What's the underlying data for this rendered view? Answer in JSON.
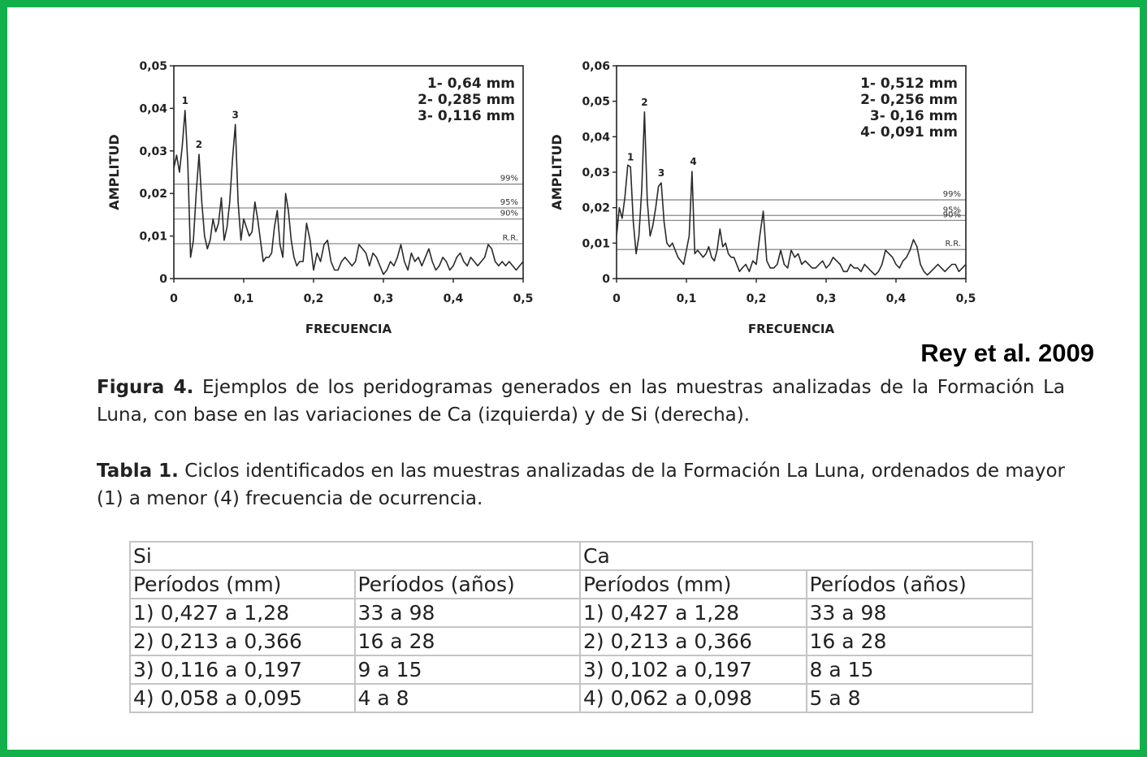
{
  "charts": [
    {
      "type": "line",
      "ylabel": "AMPLITUD",
      "xlabel": "FRECUENCIA",
      "x_ticks": [
        "0",
        "0,1",
        "0,2",
        "0,3",
        "0,4",
        "0,5"
      ],
      "y_ticks": [
        "0",
        "0,01",
        "0,02",
        "0,03",
        "0,04",
        "0,05"
      ],
      "xlim": [
        0,
        0.5
      ],
      "ylim": [
        0,
        0.05
      ],
      "legend": [
        "1- 0,64 mm",
        "2- 0,285 mm",
        "3- 0,116 mm"
      ],
      "thresholds": [
        {
          "label": "99%",
          "value": 0.0222
        },
        {
          "label": "95%",
          "value": 0.0166
        },
        {
          "label": "90%",
          "value": 0.014
        },
        {
          "label": "R.R.",
          "value": 0.0082
        }
      ],
      "peaks": [
        {
          "label": "1",
          "x": 0.016,
          "y": 0.0395
        },
        {
          "label": "2",
          "x": 0.036,
          "y": 0.0292
        },
        {
          "label": "3",
          "x": 0.088,
          "y": 0.0362
        }
      ],
      "x": [
        0,
        0.004,
        0.008,
        0.012,
        0.016,
        0.02,
        0.024,
        0.028,
        0.032,
        0.036,
        0.04,
        0.044,
        0.048,
        0.052,
        0.056,
        0.06,
        0.064,
        0.068,
        0.072,
        0.076,
        0.08,
        0.084,
        0.088,
        0.092,
        0.096,
        0.1,
        0.104,
        0.108,
        0.112,
        0.116,
        0.12,
        0.124,
        0.128,
        0.132,
        0.136,
        0.14,
        0.144,
        0.148,
        0.152,
        0.156,
        0.16,
        0.164,
        0.168,
        0.172,
        0.176,
        0.18,
        0.185,
        0.19,
        0.195,
        0.2,
        0.205,
        0.21,
        0.215,
        0.22,
        0.225,
        0.23,
        0.235,
        0.24,
        0.245,
        0.25,
        0.255,
        0.26,
        0.265,
        0.27,
        0.275,
        0.28,
        0.285,
        0.29,
        0.295,
        0.3,
        0.305,
        0.31,
        0.315,
        0.32,
        0.325,
        0.33,
        0.335,
        0.34,
        0.345,
        0.35,
        0.355,
        0.36,
        0.365,
        0.37,
        0.375,
        0.38,
        0.385,
        0.39,
        0.395,
        0.4,
        0.405,
        0.41,
        0.415,
        0.42,
        0.425,
        0.43,
        0.435,
        0.44,
        0.445,
        0.45,
        0.455,
        0.46,
        0.465,
        0.47,
        0.475,
        0.48,
        0.485,
        0.49,
        0.495,
        0.5
      ],
      "y": [
        0.026,
        0.029,
        0.025,
        0.031,
        0.0395,
        0.027,
        0.005,
        0.009,
        0.02,
        0.0292,
        0.018,
        0.01,
        0.007,
        0.009,
        0.014,
        0.011,
        0.013,
        0.019,
        0.009,
        0.012,
        0.018,
        0.028,
        0.0362,
        0.018,
        0.009,
        0.014,
        0.012,
        0.01,
        0.011,
        0.018,
        0.014,
        0.009,
        0.004,
        0.005,
        0.005,
        0.006,
        0.012,
        0.016,
        0.008,
        0.005,
        0.02,
        0.016,
        0.009,
        0.005,
        0.003,
        0.004,
        0.004,
        0.013,
        0.009,
        0.002,
        0.006,
        0.004,
        0.008,
        0.009,
        0.004,
        0.002,
        0.002,
        0.004,
        0.005,
        0.004,
        0.003,
        0.004,
        0.008,
        0.007,
        0.006,
        0.003,
        0.006,
        0.005,
        0.003,
        0.001,
        0.002,
        0.004,
        0.003,
        0.005,
        0.008,
        0.004,
        0.002,
        0.006,
        0.004,
        0.005,
        0.003,
        0.005,
        0.007,
        0.004,
        0.002,
        0.003,
        0.005,
        0.004,
        0.002,
        0.003,
        0.005,
        0.006,
        0.004,
        0.003,
        0.005,
        0.004,
        0.003,
        0.004,
        0.005,
        0.008,
        0.007,
        0.004,
        0.003,
        0.004,
        0.003,
        0.004,
        0.003,
        0.002,
        0.003,
        0.004
      ]
    },
    {
      "type": "line",
      "ylabel": "AMPLITUD",
      "xlabel": "FRECUENCIA",
      "x_ticks": [
        "0",
        "0,1",
        "0,2",
        "0,3",
        "0,4",
        "0,5"
      ],
      "y_ticks": [
        "0",
        "0,01",
        "0,02",
        "0,03",
        "0,04",
        "0,05",
        "0,06"
      ],
      "xlim": [
        0,
        0.5
      ],
      "ylim": [
        0,
        0.06
      ],
      "legend": [
        "1- 0,512 mm",
        "2- 0,256 mm",
        "3- 0,16 mm",
        "4- 0,091 mm"
      ],
      "thresholds": [
        {
          "label": "99%",
          "value": 0.0222
        },
        {
          "label": "95%",
          "value": 0.0178
        },
        {
          "label": "90%",
          "value": 0.0164
        },
        {
          "label": "R.R.",
          "value": 0.0082
        }
      ],
      "peaks": [
        {
          "label": "1",
          "x": 0.02,
          "y": 0.0315
        },
        {
          "label": "2",
          "x": 0.04,
          "y": 0.047
        },
        {
          "label": "3",
          "x": 0.064,
          "y": 0.027
        },
        {
          "label": "4",
          "x": 0.11,
          "y": 0.0302
        }
      ],
      "x": [
        0,
        0.004,
        0.008,
        0.012,
        0.016,
        0.02,
        0.024,
        0.028,
        0.032,
        0.036,
        0.04,
        0.044,
        0.048,
        0.052,
        0.056,
        0.06,
        0.064,
        0.068,
        0.072,
        0.076,
        0.08,
        0.084,
        0.088,
        0.092,
        0.096,
        0.1,
        0.104,
        0.108,
        0.112,
        0.116,
        0.12,
        0.124,
        0.128,
        0.132,
        0.136,
        0.14,
        0.144,
        0.148,
        0.152,
        0.156,
        0.16,
        0.164,
        0.168,
        0.172,
        0.176,
        0.18,
        0.185,
        0.19,
        0.195,
        0.2,
        0.205,
        0.21,
        0.215,
        0.22,
        0.225,
        0.23,
        0.235,
        0.24,
        0.245,
        0.25,
        0.255,
        0.26,
        0.265,
        0.27,
        0.275,
        0.28,
        0.285,
        0.29,
        0.295,
        0.3,
        0.305,
        0.31,
        0.315,
        0.32,
        0.325,
        0.33,
        0.335,
        0.34,
        0.345,
        0.35,
        0.355,
        0.36,
        0.365,
        0.37,
        0.375,
        0.38,
        0.385,
        0.39,
        0.395,
        0.4,
        0.405,
        0.41,
        0.415,
        0.42,
        0.425,
        0.43,
        0.435,
        0.44,
        0.445,
        0.45,
        0.455,
        0.46,
        0.465,
        0.47,
        0.475,
        0.48,
        0.485,
        0.49,
        0.495,
        0.5
      ],
      "y": [
        0.012,
        0.02,
        0.017,
        0.023,
        0.032,
        0.0315,
        0.016,
        0.007,
        0.012,
        0.025,
        0.047,
        0.022,
        0.012,
        0.015,
        0.02,
        0.026,
        0.027,
        0.016,
        0.01,
        0.009,
        0.01,
        0.008,
        0.006,
        0.005,
        0.004,
        0.008,
        0.012,
        0.0302,
        0.007,
        0.008,
        0.007,
        0.006,
        0.007,
        0.009,
        0.006,
        0.005,
        0.008,
        0.014,
        0.009,
        0.01,
        0.007,
        0.006,
        0.006,
        0.004,
        0.002,
        0.003,
        0.004,
        0.002,
        0.005,
        0.004,
        0.012,
        0.019,
        0.005,
        0.003,
        0.003,
        0.004,
        0.008,
        0.004,
        0.003,
        0.008,
        0.006,
        0.007,
        0.004,
        0.005,
        0.004,
        0.003,
        0.003,
        0.004,
        0.005,
        0.003,
        0.004,
        0.006,
        0.005,
        0.004,
        0.002,
        0.002,
        0.004,
        0.003,
        0.003,
        0.002,
        0.004,
        0.003,
        0.002,
        0.001,
        0.002,
        0.004,
        0.008,
        0.007,
        0.006,
        0.004,
        0.003,
        0.005,
        0.006,
        0.008,
        0.011,
        0.009,
        0.004,
        0.002,
        0.001,
        0.002,
        0.003,
        0.004,
        0.003,
        0.002,
        0.003,
        0.004,
        0.004,
        0.002,
        0.003,
        0.004
      ]
    }
  ],
  "attribution": "Rey et al. 2009",
  "figure_caption": {
    "label": "Figura 4.",
    "text": " Ejemplos de los peridogramas generados en las muestras analizadas de la Formación La Luna, con base en las variaciones de Ca (izquierda) y de Si (derecha)."
  },
  "table_caption": {
    "label": "Tabla 1.",
    "text": " Ciclos identificados en las muestras analizadas de la Formación La Luna, ordenados de mayor (1) a menor (4) frecuencia de ocurrencia."
  },
  "table": {
    "groups": [
      "Si",
      "Ca"
    ],
    "headers": [
      "Períodos (mm)",
      "Períodos (años)",
      "Períodos (mm)",
      "Períodos (años)"
    ],
    "rows": [
      [
        "1) 0,427 a 1,28",
        "33 a 98",
        "1) 0,427 a 1,28",
        "33 a 98"
      ],
      [
        "2) 0,213 a 0,366",
        "16 a 28",
        "2) 0,213 a 0,366",
        "16 a 28"
      ],
      [
        "3) 0,116 a 0,197",
        "9 a 15",
        "3) 0,102 a 0,197",
        "8 a 15"
      ],
      [
        "4) 0,058 a 0,095",
        "4 a 8",
        "4) 0,062 a 0,098",
        "5 a 8"
      ]
    ]
  },
  "chart_data": [
    {
      "type": "line",
      "title": "",
      "xlabel": "FRECUENCIA",
      "ylabel": "AMPLITUD",
      "xlim": [
        0,
        0.5
      ],
      "ylim": [
        0,
        0.05
      ],
      "annotations": [
        "1- 0,64 mm",
        "2- 0,285 mm",
        "3- 0,116 mm",
        "99%",
        "95%",
        "90%",
        "R.R."
      ]
    },
    {
      "type": "line",
      "title": "",
      "xlabel": "FRECUENCIA",
      "ylabel": "AMPLITUD",
      "xlim": [
        0,
        0.5
      ],
      "ylim": [
        0,
        0.06
      ],
      "annotations": [
        "1- 0,512 mm",
        "2- 0,256 mm",
        "3- 0,16 mm",
        "4- 0,091 mm",
        "99%",
        "95%",
        "90%",
        "R.R."
      ]
    }
  ]
}
